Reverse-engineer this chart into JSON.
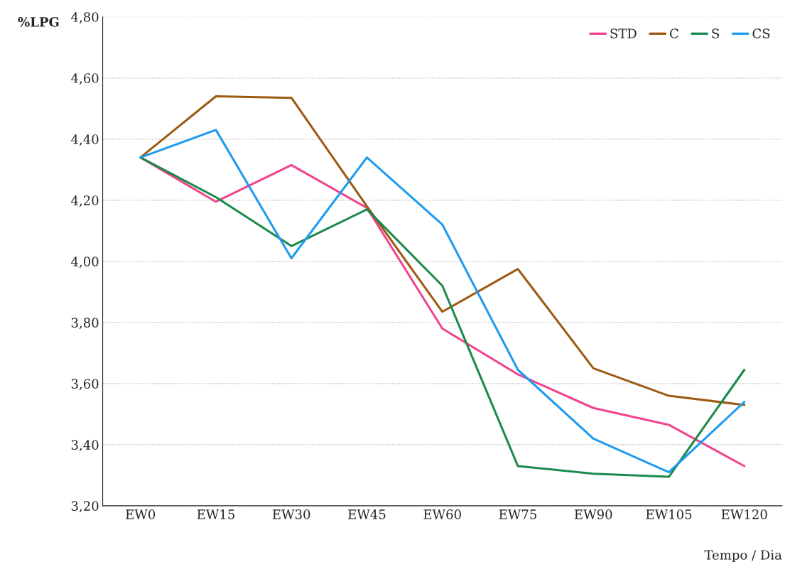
{
  "chart_data": {
    "type": "line",
    "ylabel": "%LPG",
    "xlabel": "Tempo / Dia",
    "categories": [
      "EW0",
      "EW15",
      "EW30",
      "EW45",
      "EW60",
      "EW75",
      "EW90",
      "EW105",
      "EW120"
    ],
    "series": [
      {
        "name": "STD",
        "color": "#f0448f",
        "values": [
          4.34,
          4.195,
          4.315,
          4.175,
          3.78,
          3.63,
          3.52,
          3.465,
          3.33
        ]
      },
      {
        "name": "C",
        "color": "#9c5a12",
        "values": [
          4.34,
          4.54,
          4.535,
          4.18,
          3.835,
          3.975,
          3.65,
          3.56,
          3.53
        ]
      },
      {
        "name": "S",
        "color": "#1a8a4a",
        "values": [
          4.34,
          4.21,
          4.05,
          4.17,
          3.92,
          3.33,
          3.305,
          3.295,
          3.645
        ]
      },
      {
        "name": "CS",
        "color": "#1f9bef",
        "values": [
          4.34,
          4.43,
          4.01,
          4.34,
          4.12,
          3.645,
          3.42,
          3.31,
          3.54
        ]
      }
    ],
    "ylim": [
      3.2,
      4.8
    ],
    "yticks": [
      {
        "value": 3.2,
        "label": "3,20"
      },
      {
        "value": 3.4,
        "label": "3,40"
      },
      {
        "value": 3.6,
        "label": "3,60"
      },
      {
        "value": 3.8,
        "label": "3,80"
      },
      {
        "value": 4.0,
        "label": "4,00"
      },
      {
        "value": 4.2,
        "label": "4,20"
      },
      {
        "value": 4.4,
        "label": "4,40"
      },
      {
        "value": 4.6,
        "label": "4,60"
      },
      {
        "value": 4.8,
        "label": "4,80"
      }
    ],
    "grid": "y",
    "legend": "top right"
  }
}
